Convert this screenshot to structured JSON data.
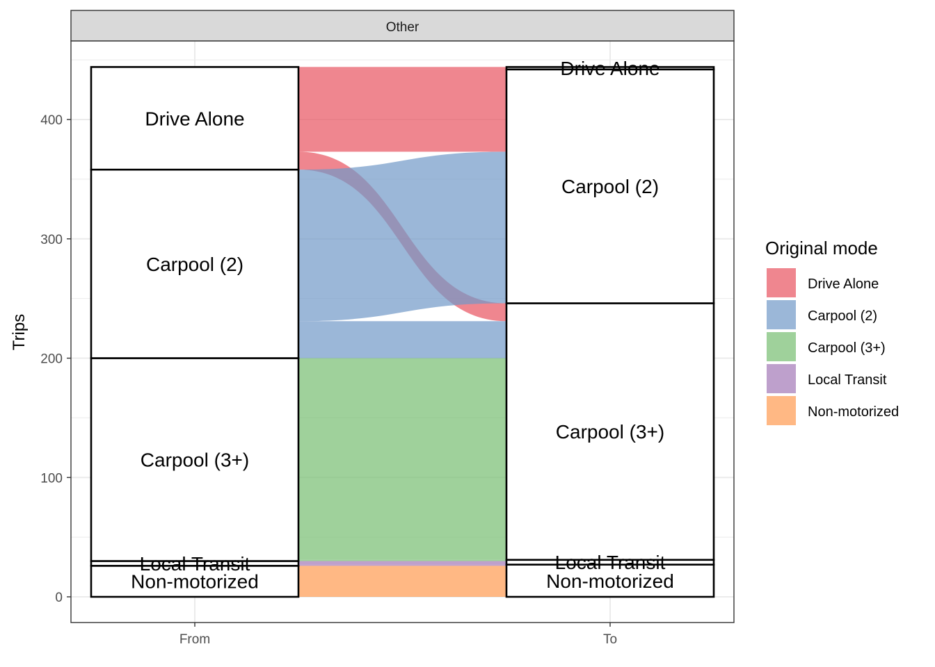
{
  "chart_data": {
    "type": "alluvial",
    "panel_title": "Other",
    "xlabel": "",
    "ylabel": "Trips",
    "axes": [
      "From",
      "To"
    ],
    "yticks": [
      0,
      100,
      200,
      300,
      400
    ],
    "ylim": [
      -15,
      450
    ],
    "legend": {
      "title": "Original mode",
      "position": "right",
      "entries": [
        "Drive Alone",
        "Carpool (2)",
        "Carpool (3+)",
        "Local Transit",
        "Non-motorized"
      ]
    },
    "colors": {
      "Drive Alone": "#e8525f",
      "Carpool (2)": "#7198c8",
      "Carpool (3+)": "#76bd71",
      "Local Transit": "#a377b7",
      "Non-motorized": "#ff9a50"
    },
    "strata_order": [
      "Non-motorized",
      "Local Transit",
      "Carpool (3+)",
      "Carpool (2)",
      "Drive Alone"
    ],
    "flows": [
      {
        "from": "Drive Alone",
        "to": "Drive Alone",
        "value": 2
      },
      {
        "from": "Drive Alone",
        "to": "Carpool (2)",
        "value": 69
      },
      {
        "from": "Drive Alone",
        "to": "Carpool (3+)",
        "value": 15
      },
      {
        "from": "Carpool (2)",
        "to": "Carpool (2)",
        "value": 127
      },
      {
        "from": "Carpool (2)",
        "to": "Carpool (3+)",
        "value": 31
      },
      {
        "from": "Carpool (3+)",
        "to": "Carpool (3+)",
        "value": 169
      },
      {
        "from": "Carpool (3+)",
        "to": "Local Transit",
        "value": 1
      },
      {
        "from": "Local Transit",
        "to": "Local Transit",
        "value": 3
      },
      {
        "from": "Local Transit",
        "to": "Non-motorized",
        "value": 1
      },
      {
        "from": "Non-motorized",
        "to": "Non-motorized",
        "value": 26
      }
    ]
  }
}
